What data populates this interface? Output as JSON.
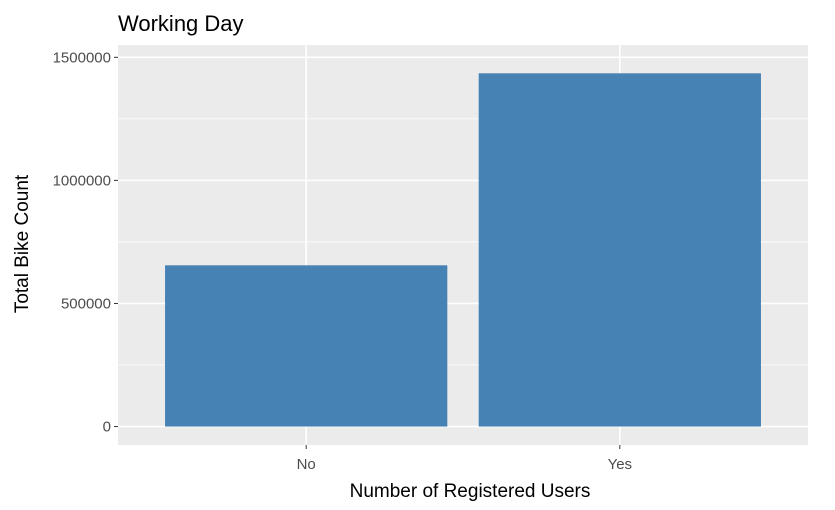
{
  "chart_data": {
    "type": "bar",
    "title": "Working Day",
    "xlabel": "Number of Registered Users",
    "ylabel": "Total Bike Count",
    "categories": [
      "No",
      "Yes"
    ],
    "values": [
      655000,
      1435000
    ],
    "ylim": [
      -75000,
      1550000
    ],
    "yticks": [
      0,
      500000,
      1000000,
      1500000
    ],
    "ytick_labels": [
      "0",
      "500000",
      "1000000",
      "1500000"
    ],
    "grid": true,
    "legend": "none",
    "colors": {
      "bar": "#4682b4",
      "panel": "#ebebeb",
      "grid": "#ffffff",
      "tick": "#333333"
    }
  }
}
